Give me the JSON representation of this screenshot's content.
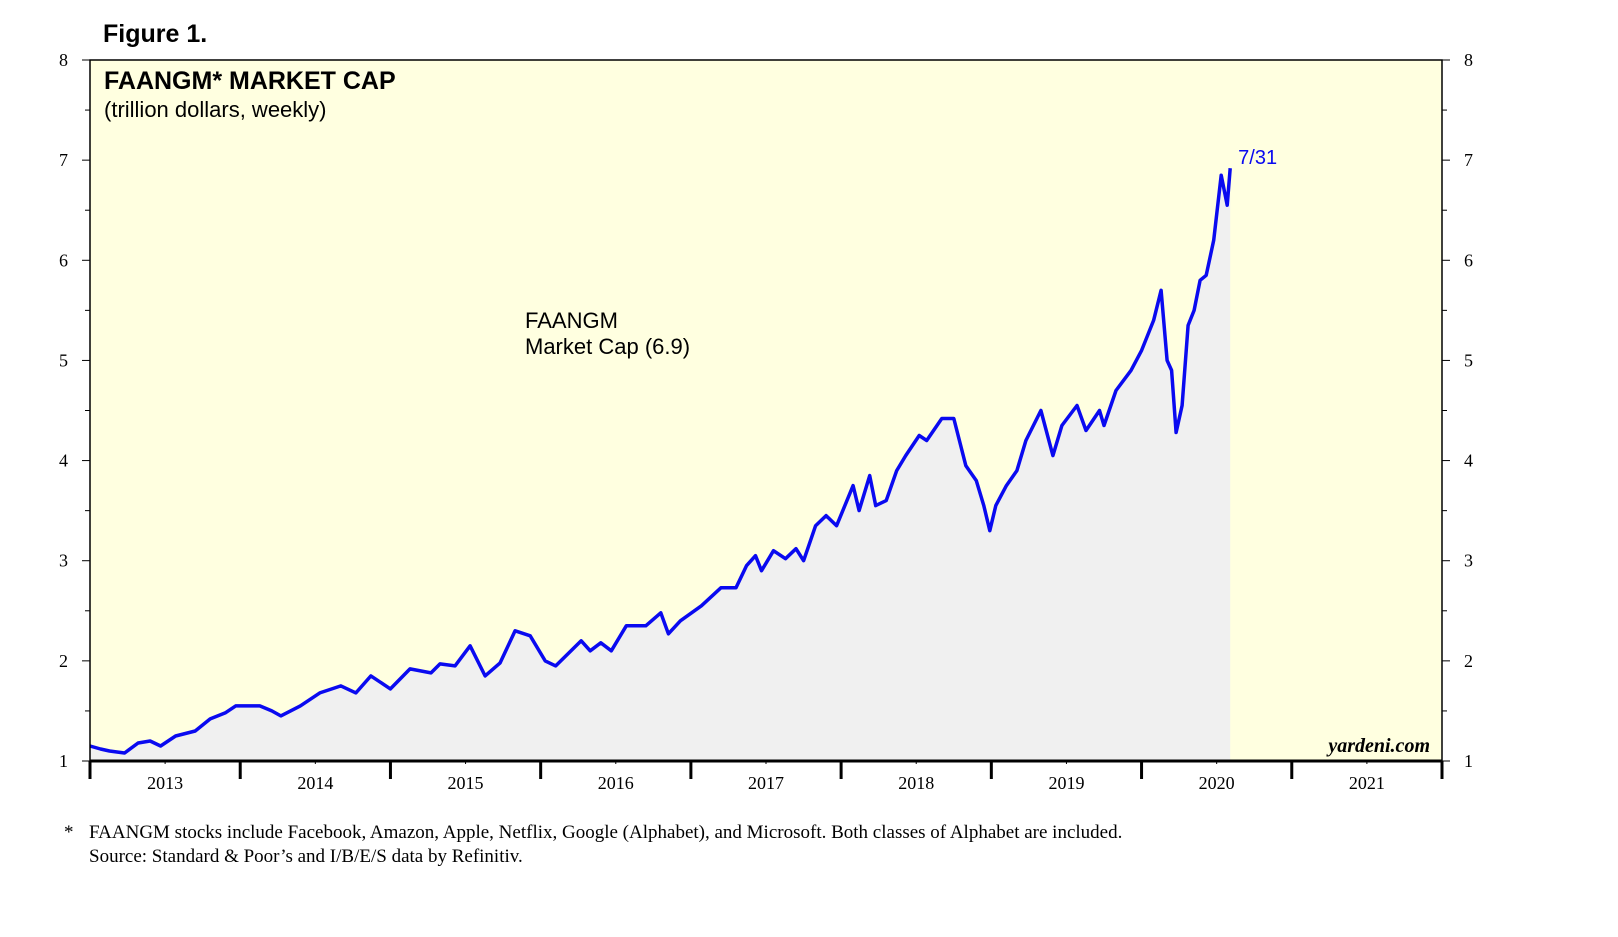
{
  "chart_data": {
    "type": "area-line",
    "figure_label": "Figure 1.",
    "title": "FAANGM* MARKET CAP",
    "subtitle": "(trillion dollars, weekly)",
    "annotation": [
      "FAANGM",
      "Market Cap (6.9)"
    ],
    "end_label": "7/31",
    "watermark": "yardeni.com",
    "footnotes": [
      "*",
      "FAANGM stocks include Facebook, Amazon, Apple, Netflix, Google (Alphabet), and Microsoft. Both classes of Alphabet are included.",
      "Source: Standard & Poor’s and I/B/E/S data by Refinitiv."
    ],
    "background": "#ffffe0",
    "fill": "#f0f0f0",
    "xlim": [
      2013,
      2022
    ],
    "ylim": [
      1,
      8
    ],
    "yticks": [
      1,
      2,
      3,
      4,
      5,
      6,
      7,
      8
    ],
    "xticks": [
      {
        "value": 2013.5,
        "label": "2013"
      },
      {
        "value": 2014.5,
        "label": "2014"
      },
      {
        "value": 2015.5,
        "label": "2015"
      },
      {
        "value": 2016.5,
        "label": "2016"
      },
      {
        "value": 2017.5,
        "label": "2017"
      },
      {
        "value": 2018.5,
        "label": "2018"
      },
      {
        "value": 2019.5,
        "label": "2019"
      },
      {
        "value": 2020.5,
        "label": "2020"
      },
      {
        "value": 2021.5,
        "label": "2021"
      }
    ],
    "x": [
      2013.0,
      2013.07,
      2013.13,
      2013.23,
      2013.32,
      2013.4,
      2013.47,
      2013.57,
      2013.7,
      2013.8,
      2013.9,
      2013.97,
      2014.13,
      2014.21,
      2014.27,
      2014.4,
      2014.53,
      2014.67,
      2014.77,
      2014.87,
      2015.0,
      2015.13,
      2015.27,
      2015.33,
      2015.43,
      2015.53,
      2015.63,
      2015.73,
      2015.83,
      2015.93,
      2016.03,
      2016.1,
      2016.27,
      2016.33,
      2016.4,
      2016.47,
      2016.57,
      2016.7,
      2016.8,
      2016.85,
      2016.93,
      2017.07,
      2017.2,
      2017.3,
      2017.37,
      2017.43,
      2017.47,
      2017.55,
      2017.63,
      2017.7,
      2017.75,
      2017.83,
      2017.9,
      2017.97,
      2018.08,
      2018.12,
      2018.19,
      2018.23,
      2018.3,
      2018.37,
      2018.43,
      2018.52,
      2018.57,
      2018.67,
      2018.75,
      2018.83,
      2018.9,
      2018.95,
      2018.99,
      2019.03,
      2019.1,
      2019.17,
      2019.23,
      2019.33,
      2019.41,
      2019.47,
      2019.57,
      2019.63,
      2019.72,
      2019.75,
      2019.83,
      2019.93,
      2020.0,
      2020.08,
      2020.13,
      2020.17,
      2020.2,
      2020.23,
      2020.27,
      2020.31,
      2020.35,
      2020.39,
      2020.43,
      2020.48,
      2020.53,
      2020.57,
      2020.59
    ],
    "series": [
      {
        "name": "FAANGM Market Cap",
        "color": "#0a0af0",
        "values": [
          1.15,
          1.12,
          1.1,
          1.08,
          1.18,
          1.2,
          1.15,
          1.25,
          1.3,
          1.42,
          1.48,
          1.55,
          1.55,
          1.5,
          1.45,
          1.55,
          1.68,
          1.75,
          1.68,
          1.85,
          1.72,
          1.92,
          1.88,
          1.97,
          1.95,
          2.15,
          1.85,
          1.98,
          2.3,
          2.25,
          2.0,
          1.95,
          2.2,
          2.1,
          2.18,
          2.1,
          2.35,
          2.35,
          2.48,
          2.27,
          2.4,
          2.55,
          2.73,
          2.73,
          2.95,
          3.05,
          2.9,
          3.1,
          3.02,
          3.12,
          3.0,
          3.35,
          3.45,
          3.35,
          3.75,
          3.5,
          3.85,
          3.55,
          3.6,
          3.9,
          4.05,
          4.25,
          4.2,
          4.42,
          4.42,
          3.95,
          3.8,
          3.55,
          3.3,
          3.55,
          3.75,
          3.9,
          4.2,
          4.5,
          4.05,
          4.35,
          4.55,
          4.3,
          4.5,
          4.35,
          4.7,
          4.9,
          5.1,
          5.4,
          5.7,
          5.0,
          4.9,
          4.28,
          4.55,
          5.35,
          5.5,
          5.8,
          5.85,
          6.2,
          6.85,
          6.55,
          6.92
        ]
      }
    ]
  }
}
